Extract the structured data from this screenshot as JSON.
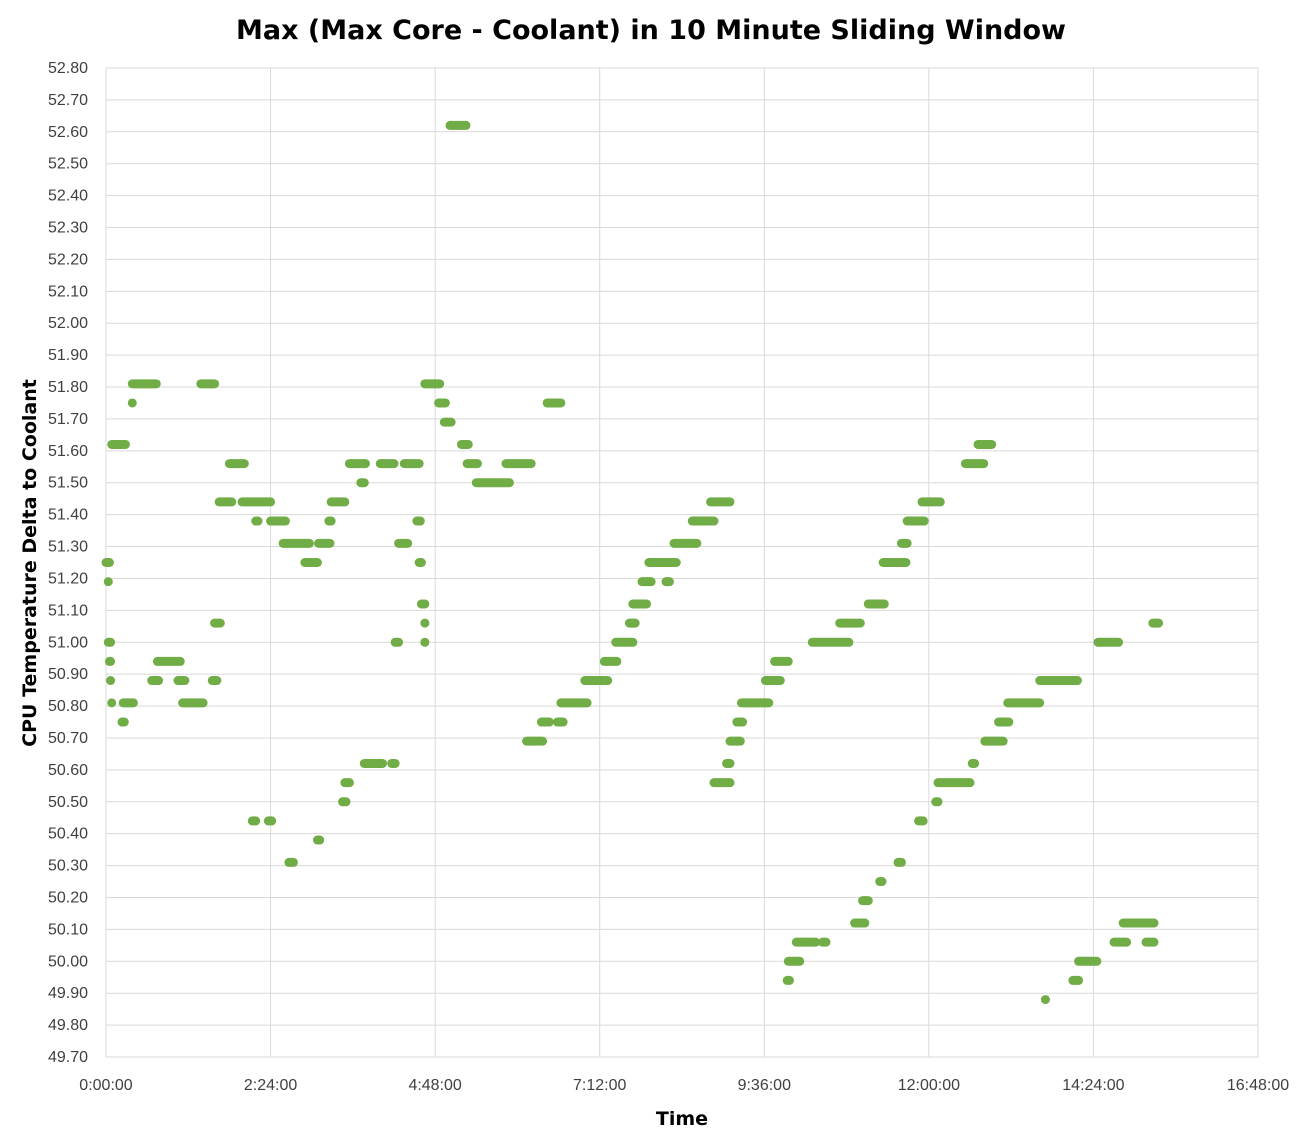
{
  "chart_data": {
    "type": "scatter",
    "title": "Max (Max Core - Coolant) in 10 Minute Sliding Window",
    "xlabel": "Time",
    "ylabel": "CPU Temperature Delta to Coolant",
    "x_unit": "minutes",
    "xlim": [
      0,
      1008
    ],
    "x_ticks": [
      0,
      144,
      288,
      432,
      576,
      720,
      864,
      1008
    ],
    "x_tick_labels": [
      "0:00:00",
      "2:24:00",
      "4:48:00",
      "7:12:00",
      "9:36:00",
      "12:00:00",
      "14:24:00",
      "16:48:00"
    ],
    "ylim": [
      49.7,
      52.8
    ],
    "y_ticks": [
      49.7,
      49.8,
      49.9,
      50.0,
      50.1,
      50.2,
      50.3,
      50.4,
      50.5,
      50.6,
      50.7,
      50.8,
      50.9,
      51.0,
      51.1,
      51.2,
      51.3,
      51.4,
      51.5,
      51.6,
      51.7,
      51.8,
      51.9,
      52.0,
      52.1,
      52.2,
      52.3,
      52.4,
      52.5,
      52.6,
      52.7,
      52.8
    ],
    "y_tick_labels": [
      "49.70",
      "49.80",
      "49.90",
      "50.00",
      "50.10",
      "50.20",
      "50.30",
      "50.40",
      "50.50",
      "50.60",
      "50.70",
      "50.80",
      "50.90",
      "51.00",
      "51.10",
      "51.20",
      "51.30",
      "51.40",
      "51.50",
      "51.60",
      "51.70",
      "51.80",
      "51.90",
      "52.00",
      "52.10",
      "52.20",
      "52.30",
      "52.40",
      "52.50",
      "52.60",
      "52.70",
      "52.80"
    ],
    "grid": true,
    "legend": "none",
    "marker_color": "#70ad47",
    "segments": [
      {
        "x_start": 0,
        "x_end": 3,
        "y": 51.25
      },
      {
        "x_start": 2,
        "x_end": 2,
        "y": 51.19
      },
      {
        "x_start": 2,
        "x_end": 4,
        "y": 51.0
      },
      {
        "x_start": 3,
        "x_end": 4,
        "y": 50.94
      },
      {
        "x_start": 4,
        "x_end": 4,
        "y": 50.88
      },
      {
        "x_start": 5,
        "x_end": 5,
        "y": 50.81
      },
      {
        "x_start": 5,
        "x_end": 17,
        "y": 51.62
      },
      {
        "x_start": 14,
        "x_end": 16,
        "y": 50.75
      },
      {
        "x_start": 15,
        "x_end": 24,
        "y": 50.81
      },
      {
        "x_start": 23,
        "x_end": 23,
        "y": 51.75
      },
      {
        "x_start": 23,
        "x_end": 44,
        "y": 51.81
      },
      {
        "x_start": 40,
        "x_end": 46,
        "y": 50.88
      },
      {
        "x_start": 45,
        "x_end": 65,
        "y": 50.94
      },
      {
        "x_start": 63,
        "x_end": 69,
        "y": 50.88
      },
      {
        "x_start": 67,
        "x_end": 85,
        "y": 50.81
      },
      {
        "x_start": 83,
        "x_end": 95,
        "y": 51.81
      },
      {
        "x_start": 93,
        "x_end": 97,
        "y": 50.88
      },
      {
        "x_start": 95,
        "x_end": 100,
        "y": 51.06
      },
      {
        "x_start": 99,
        "x_end": 110,
        "y": 51.44
      },
      {
        "x_start": 108,
        "x_end": 121,
        "y": 51.56
      },
      {
        "x_start": 119,
        "x_end": 144,
        "y": 51.44
      },
      {
        "x_start": 128,
        "x_end": 131,
        "y": 50.44
      },
      {
        "x_start": 131,
        "x_end": 133,
        "y": 51.38
      },
      {
        "x_start": 142,
        "x_end": 145,
        "y": 50.44
      },
      {
        "x_start": 144,
        "x_end": 157,
        "y": 51.38
      },
      {
        "x_start": 155,
        "x_end": 178,
        "y": 51.31
      },
      {
        "x_start": 160,
        "x_end": 164,
        "y": 50.31
      },
      {
        "x_start": 174,
        "x_end": 185,
        "y": 51.25
      },
      {
        "x_start": 185,
        "x_end": 187,
        "y": 50.38
      },
      {
        "x_start": 186,
        "x_end": 196,
        "y": 51.31
      },
      {
        "x_start": 195,
        "x_end": 197,
        "y": 51.38
      },
      {
        "x_start": 197,
        "x_end": 209,
        "y": 51.44
      },
      {
        "x_start": 207,
        "x_end": 210,
        "y": 50.5
      },
      {
        "x_start": 209,
        "x_end": 213,
        "y": 50.56
      },
      {
        "x_start": 213,
        "x_end": 227,
        "y": 51.56
      },
      {
        "x_start": 223,
        "x_end": 226,
        "y": 51.5
      },
      {
        "x_start": 226,
        "x_end": 242,
        "y": 50.62
      },
      {
        "x_start": 240,
        "x_end": 252,
        "y": 51.56
      },
      {
        "x_start": 250,
        "x_end": 253,
        "y": 50.62
      },
      {
        "x_start": 253,
        "x_end": 256,
        "y": 51.0
      },
      {
        "x_start": 256,
        "x_end": 264,
        "y": 51.31
      },
      {
        "x_start": 261,
        "x_end": 274,
        "y": 51.56
      },
      {
        "x_start": 272,
        "x_end": 275,
        "y": 51.38
      },
      {
        "x_start": 274,
        "x_end": 276,
        "y": 51.25
      },
      {
        "x_start": 276,
        "x_end": 279,
        "y": 51.12
      },
      {
        "x_start": 279,
        "x_end": 279,
        "y": 51.06
      },
      {
        "x_start": 279,
        "x_end": 279,
        "y": 51.0
      },
      {
        "x_start": 279,
        "x_end": 292,
        "y": 51.81
      },
      {
        "x_start": 291,
        "x_end": 297,
        "y": 51.75
      },
      {
        "x_start": 296,
        "x_end": 302,
        "y": 51.69
      },
      {
        "x_start": 301,
        "x_end": 315,
        "y": 52.62
      },
      {
        "x_start": 311,
        "x_end": 317,
        "y": 51.62
      },
      {
        "x_start": 316,
        "x_end": 325,
        "y": 51.56
      },
      {
        "x_start": 324,
        "x_end": 353,
        "y": 51.5
      },
      {
        "x_start": 350,
        "x_end": 372,
        "y": 51.56
      },
      {
        "x_start": 368,
        "x_end": 382,
        "y": 50.69
      },
      {
        "x_start": 381,
        "x_end": 388,
        "y": 50.75
      },
      {
        "x_start": 386,
        "x_end": 398,
        "y": 51.75
      },
      {
        "x_start": 395,
        "x_end": 400,
        "y": 50.75
      },
      {
        "x_start": 398,
        "x_end": 421,
        "y": 50.81
      },
      {
        "x_start": 419,
        "x_end": 439,
        "y": 50.88
      },
      {
        "x_start": 436,
        "x_end": 447,
        "y": 50.94
      },
      {
        "x_start": 446,
        "x_end": 461,
        "y": 51.0
      },
      {
        "x_start": 458,
        "x_end": 463,
        "y": 51.06
      },
      {
        "x_start": 461,
        "x_end": 473,
        "y": 51.12
      },
      {
        "x_start": 469,
        "x_end": 477,
        "y": 51.19
      },
      {
        "x_start": 475,
        "x_end": 499,
        "y": 51.25
      },
      {
        "x_start": 490,
        "x_end": 493,
        "y": 51.19
      },
      {
        "x_start": 497,
        "x_end": 517,
        "y": 51.31
      },
      {
        "x_start": 513,
        "x_end": 532,
        "y": 51.38
      },
      {
        "x_start": 529,
        "x_end": 546,
        "y": 51.44
      },
      {
        "x_start": 532,
        "x_end": 546,
        "y": 50.56
      },
      {
        "x_start": 543,
        "x_end": 546,
        "y": 50.62
      },
      {
        "x_start": 546,
        "x_end": 555,
        "y": 50.69
      },
      {
        "x_start": 552,
        "x_end": 557,
        "y": 50.75
      },
      {
        "x_start": 556,
        "x_end": 580,
        "y": 50.81
      },
      {
        "x_start": 577,
        "x_end": 590,
        "y": 50.88
      },
      {
        "x_start": 585,
        "x_end": 597,
        "y": 50.94
      },
      {
        "x_start": 596,
        "x_end": 598,
        "y": 49.94
      },
      {
        "x_start": 597,
        "x_end": 607,
        "y": 50.0
      },
      {
        "x_start": 604,
        "x_end": 621,
        "y": 50.06
      },
      {
        "x_start": 618,
        "x_end": 650,
        "y": 51.0
      },
      {
        "x_start": 627,
        "x_end": 630,
        "y": 50.06
      },
      {
        "x_start": 642,
        "x_end": 660,
        "y": 51.06
      },
      {
        "x_start": 655,
        "x_end": 664,
        "y": 50.12
      },
      {
        "x_start": 662,
        "x_end": 667,
        "y": 50.19
      },
      {
        "x_start": 667,
        "x_end": 681,
        "y": 51.12
      },
      {
        "x_start": 677,
        "x_end": 679,
        "y": 50.25
      },
      {
        "x_start": 680,
        "x_end": 700,
        "y": 51.25
      },
      {
        "x_start": 693,
        "x_end": 696,
        "y": 50.31
      },
      {
        "x_start": 696,
        "x_end": 701,
        "y": 51.31
      },
      {
        "x_start": 701,
        "x_end": 716,
        "y": 51.38
      },
      {
        "x_start": 711,
        "x_end": 715,
        "y": 50.44
      },
      {
        "x_start": 714,
        "x_end": 730,
        "y": 51.44
      },
      {
        "x_start": 726,
        "x_end": 728,
        "y": 50.5
      },
      {
        "x_start": 728,
        "x_end": 756,
        "y": 50.56
      },
      {
        "x_start": 752,
        "x_end": 768,
        "y": 51.56
      },
      {
        "x_start": 758,
        "x_end": 760,
        "y": 50.62
      },
      {
        "x_start": 763,
        "x_end": 775,
        "y": 51.62
      },
      {
        "x_start": 769,
        "x_end": 785,
        "y": 50.69
      },
      {
        "x_start": 781,
        "x_end": 790,
        "y": 50.75
      },
      {
        "x_start": 789,
        "x_end": 817,
        "y": 50.81
      },
      {
        "x_start": 817,
        "x_end": 850,
        "y": 50.88
      },
      {
        "x_start": 822,
        "x_end": 822,
        "y": 49.88
      },
      {
        "x_start": 846,
        "x_end": 851,
        "y": 49.94
      },
      {
        "x_start": 851,
        "x_end": 867,
        "y": 50.0
      },
      {
        "x_start": 868,
        "x_end": 886,
        "y": 51.0
      },
      {
        "x_start": 882,
        "x_end": 893,
        "y": 50.06
      },
      {
        "x_start": 890,
        "x_end": 917,
        "y": 50.12
      },
      {
        "x_start": 910,
        "x_end": 917,
        "y": 50.06
      },
      {
        "x_start": 916,
        "x_end": 921,
        "y": 51.06
      }
    ]
  }
}
